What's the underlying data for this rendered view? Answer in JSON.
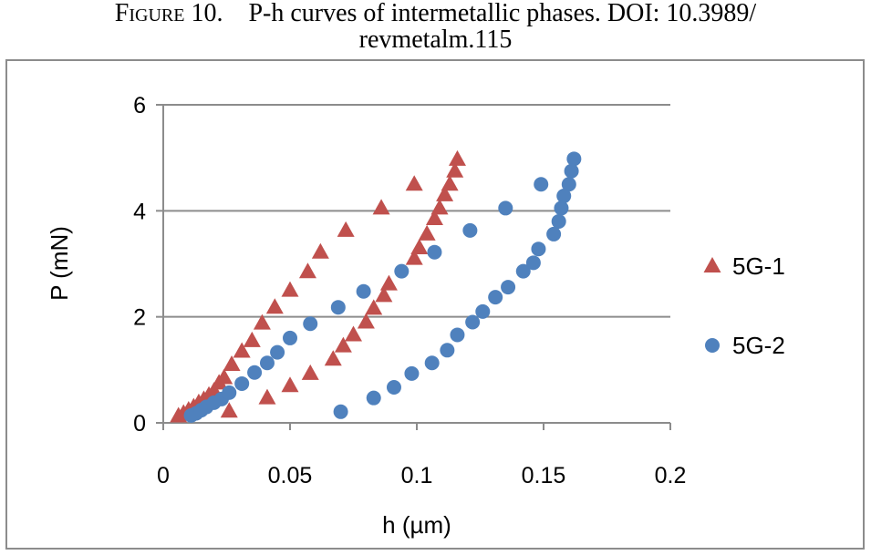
{
  "caption": {
    "figure_label": "Figure 10.",
    "text_line1": "P-h curves of intermetallic phases. DOI: 10.3989/",
    "text_line2": "revmetalm.115"
  },
  "chart_data": {
    "type": "scatter",
    "title": "",
    "xlabel": "h (µm)",
    "ylabel": "P (mN)",
    "xlim": [
      0,
      0.2
    ],
    "ylim": [
      0,
      6
    ],
    "x_ticks": [
      "0",
      "0.05",
      "0.1",
      "0.15",
      "0.2"
    ],
    "y_ticks": [
      "0",
      "2",
      "4",
      "6"
    ],
    "grid": "horizontal",
    "legend_position": "right",
    "series": [
      {
        "name": "5G-1",
        "marker": "triangle",
        "color": "#c0504d",
        "points": [
          [
            0.006,
            0.13
          ],
          [
            0.008,
            0.18
          ],
          [
            0.01,
            0.24
          ],
          [
            0.012,
            0.3
          ],
          [
            0.014,
            0.38
          ],
          [
            0.016,
            0.44
          ],
          [
            0.018,
            0.52
          ],
          [
            0.02,
            0.6
          ],
          [
            0.022,
            0.75
          ],
          [
            0.024,
            0.85
          ],
          [
            0.027,
            1.1
          ],
          [
            0.031,
            1.35
          ],
          [
            0.035,
            1.55
          ],
          [
            0.039,
            1.88
          ],
          [
            0.044,
            2.18
          ],
          [
            0.05,
            2.5
          ],
          [
            0.057,
            2.85
          ],
          [
            0.062,
            3.22
          ],
          [
            0.072,
            3.63
          ],
          [
            0.086,
            4.05
          ],
          [
            0.099,
            4.5
          ],
          [
            0.116,
            4.97
          ],
          [
            0.115,
            4.75
          ],
          [
            0.113,
            4.5
          ],
          [
            0.111,
            4.3
          ],
          [
            0.109,
            4.05
          ],
          [
            0.107,
            3.85
          ],
          [
            0.104,
            3.56
          ],
          [
            0.101,
            3.3
          ],
          [
            0.099,
            3.1
          ],
          [
            0.089,
            2.62
          ],
          [
            0.087,
            2.4
          ],
          [
            0.083,
            2.16
          ],
          [
            0.08,
            1.9
          ],
          [
            0.075,
            1.66
          ],
          [
            0.071,
            1.45
          ],
          [
            0.067,
            1.2
          ],
          [
            0.058,
            0.93
          ],
          [
            0.05,
            0.7
          ],
          [
            0.041,
            0.47
          ],
          [
            0.026,
            0.22
          ]
        ]
      },
      {
        "name": "5G-2",
        "marker": "circle",
        "color": "#4f81bd",
        "points": [
          [
            0.011,
            0.14
          ],
          [
            0.013,
            0.18
          ],
          [
            0.015,
            0.24
          ],
          [
            0.017,
            0.3
          ],
          [
            0.02,
            0.38
          ],
          [
            0.023,
            0.45
          ],
          [
            0.026,
            0.57
          ],
          [
            0.031,
            0.74
          ],
          [
            0.036,
            0.95
          ],
          [
            0.041,
            1.13
          ],
          [
            0.045,
            1.33
          ],
          [
            0.05,
            1.6
          ],
          [
            0.058,
            1.87
          ],
          [
            0.069,
            2.18
          ],
          [
            0.079,
            2.48
          ],
          [
            0.094,
            2.86
          ],
          [
            0.107,
            3.22
          ],
          [
            0.121,
            3.63
          ],
          [
            0.135,
            4.05
          ],
          [
            0.149,
            4.5
          ],
          [
            0.162,
            4.98
          ],
          [
            0.161,
            4.75
          ],
          [
            0.16,
            4.5
          ],
          [
            0.158,
            4.28
          ],
          [
            0.157,
            4.05
          ],
          [
            0.156,
            3.8
          ],
          [
            0.154,
            3.56
          ],
          [
            0.148,
            3.28
          ],
          [
            0.146,
            3.02
          ],
          [
            0.142,
            2.86
          ],
          [
            0.136,
            2.56
          ],
          [
            0.131,
            2.37
          ],
          [
            0.126,
            2.1
          ],
          [
            0.122,
            1.9
          ],
          [
            0.116,
            1.66
          ],
          [
            0.112,
            1.37
          ],
          [
            0.106,
            1.13
          ],
          [
            0.098,
            0.93
          ],
          [
            0.091,
            0.67
          ],
          [
            0.083,
            0.47
          ],
          [
            0.07,
            0.21
          ]
        ]
      }
    ]
  }
}
